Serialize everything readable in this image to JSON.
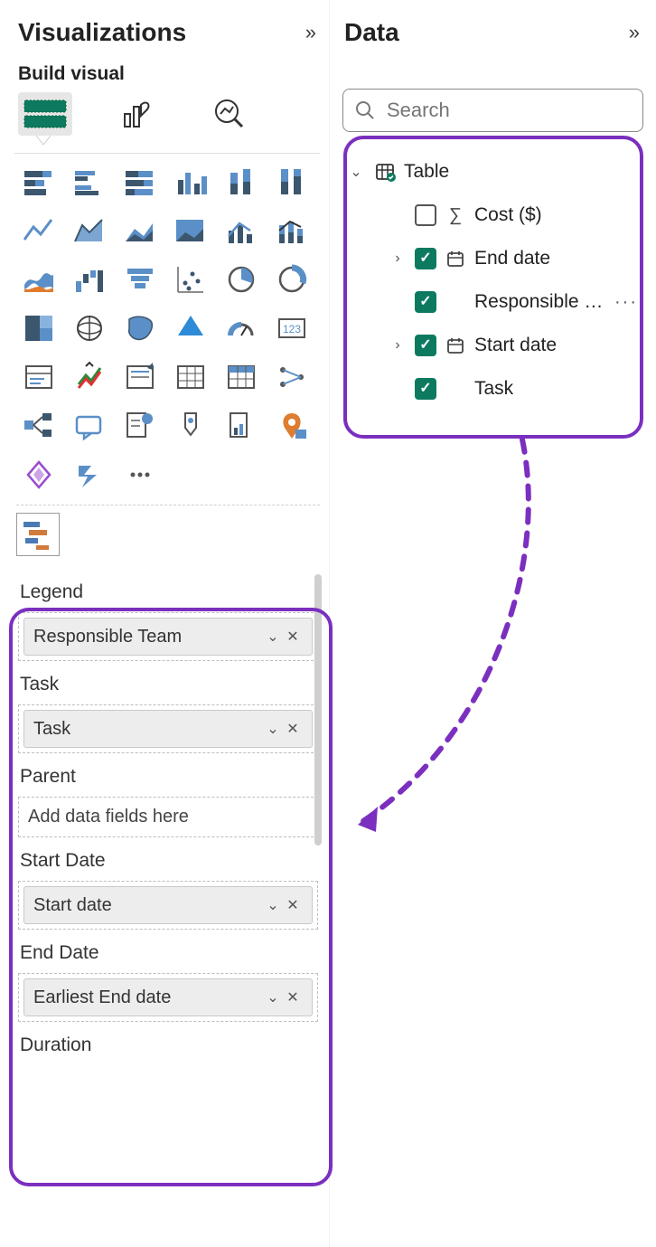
{
  "colors": {
    "highlight": "#7b2fbf",
    "check_bg": "#0d7a5f",
    "panel_text": "#222222",
    "pill_bg": "#ededed",
    "pill_border": "#c9c9c9",
    "dashed_border": "#bdbdbd",
    "gantt_bar1": "#4a7ab4",
    "gantt_bar2": "#d07a3b",
    "viz_blue": "#5b8fc7",
    "viz_dark": "#3c566e",
    "viz_orange": "#de7c2f"
  },
  "viz_panel": {
    "title": "Visualizations",
    "subtitle": "Build visual",
    "mode_tabs": {
      "build": "build-visual-tab",
      "format": "format-visual-tab",
      "analytics": "analytics-tab"
    },
    "gallery": [
      "stacked-bar",
      "clustered-bar",
      "stacked-bar-100",
      "clustered-column",
      "stacked-column",
      "stacked-column-100",
      "line",
      "area",
      "stacked-area",
      "area-100",
      "line-clustered-column",
      "line-stacked-column",
      "ribbon",
      "waterfall",
      "funnel",
      "scatter",
      "pie",
      "donut",
      "treemap",
      "map",
      "filled-map",
      "azure-map",
      "gauge",
      "card",
      "multi-row-card",
      "kpi",
      "slicer",
      "table",
      "matrix",
      "r-visual",
      "decomposition-tree",
      "qna",
      "key-influencers",
      "smart-narrative",
      "paginated",
      "arcgis",
      "power-apps",
      "power-automate",
      "more-visuals"
    ],
    "selected_visual": "gantt-chart",
    "wells": {
      "legend": {
        "label": "Legend",
        "value": "Responsible Team"
      },
      "task": {
        "label": "Task",
        "value": "Task"
      },
      "parent": {
        "label": "Parent",
        "placeholder": "Add data fields here"
      },
      "start_date": {
        "label": "Start Date",
        "value": "Start date"
      },
      "end_date": {
        "label": "End Date",
        "value": "Earliest End date"
      },
      "duration": {
        "label": "Duration"
      }
    }
  },
  "data_panel": {
    "title": "Data",
    "search_placeholder": "Search",
    "table_name": "Table",
    "fields": [
      {
        "name": "Cost ($)",
        "checked": false,
        "type": "sum",
        "expandable": false
      },
      {
        "name": "End date",
        "checked": true,
        "type": "date-hierarchy",
        "expandable": true
      },
      {
        "name": "Responsible …",
        "checked": true,
        "type": "text",
        "expandable": false,
        "has_menu": true
      },
      {
        "name": "Start date",
        "checked": true,
        "type": "date-hierarchy",
        "expandable": true
      },
      {
        "name": "Task",
        "checked": true,
        "type": "text",
        "expandable": false
      }
    ]
  }
}
